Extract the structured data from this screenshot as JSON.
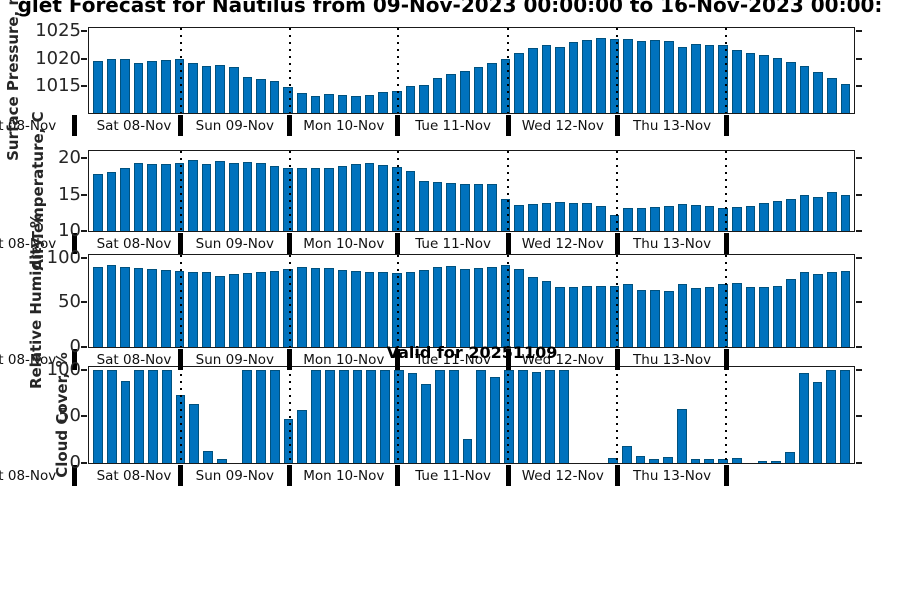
{
  "title": "glet Forecast for Nautilus from 09-Nov-2023 00:00:00 to 16-Nov-2023 00:00:",
  "watermark": "Valid for 20251109",
  "colors": {
    "bar_face": "#0072BD",
    "bar_edge": "#00517E",
    "axis": "#1a1a1a",
    "text": "#262626"
  },
  "x_axis": {
    "day_labels": [
      "Sat 08-Nov",
      "Sun 09-Nov",
      "Mon 10-Nov",
      "Tue 11-Nov",
      "Wed 12-Nov",
      "Thu 13-Nov",
      ""
    ],
    "clipped_left_label": "at 08-Nov",
    "day_boundaries_pct": [
      12.0,
      26.3,
      40.4,
      54.8,
      69.0,
      83.3
    ]
  },
  "chart_data": [
    {
      "type": "bar",
      "ylabel": "Surface Pressure, mb",
      "ylim": [
        1010,
        1025.6
      ],
      "yticks": [
        1015,
        1020,
        1025
      ],
      "grid": "vertical dotted lines at day boundaries",
      "values": [
        1019.5,
        1020,
        1020,
        1019.2,
        1019.5,
        1019.7,
        1020,
        1019.2,
        1018.6,
        1018.9,
        1018.4,
        1016.7,
        1016.3,
        1015.9,
        1014.8,
        1013.7,
        1013.2,
        1013.5,
        1013.3,
        1013.2,
        1013.3,
        1013.9,
        1014.1,
        1015,
        1015.2,
        1016.5,
        1017.1,
        1017.7,
        1018.4,
        1019.1,
        1019.9,
        1021,
        1021.9,
        1022.4,
        1022.2,
        1023,
        1023.4,
        1023.8,
        1023.5,
        1023.6,
        1023.2,
        1023.4,
        1023.3,
        1022.2,
        1022.6,
        1022.4,
        1022.4,
        1021.6,
        1021.1,
        1020.7,
        1020.1,
        1019.3,
        1018.6,
        1017.6,
        1016.4,
        1015.3
      ]
    },
    {
      "type": "bar",
      "ylabel": "Air Temperature, C",
      "ylim": [
        10,
        21
      ],
      "yticks": [
        10,
        15,
        20
      ],
      "grid": "vertical dotted lines at day boundaries",
      "values": [
        17.8,
        18.1,
        18.6,
        19.3,
        19.2,
        19.2,
        19.4,
        19.7,
        19.2,
        19.6,
        19.4,
        19.5,
        19.3,
        19.0,
        18.7,
        18.6,
        18.6,
        18.7,
        18.9,
        19.2,
        19.4,
        19.1,
        18.8,
        18.3,
        16.9,
        16.7,
        16.6,
        16.5,
        16.4,
        16.4,
        14.4,
        13.6,
        13.7,
        13.8,
        14.0,
        13.9,
        13.8,
        13.5,
        12.2,
        13.2,
        13.2,
        13.3,
        13.5,
        13.7,
        13.6,
        13.4,
        13.1,
        13.3,
        13.5,
        13.8,
        14.1,
        14.4,
        15.0,
        14.7,
        15.3,
        15.0
      ]
    },
    {
      "type": "bar",
      "ylabel": "Relative Humidity, %",
      "ylim": [
        0,
        103
      ],
      "yticks": [
        0,
        50,
        100
      ],
      "grid": "vertical dotted lines at day boundaries",
      "values": [
        90,
        91.5,
        90,
        88,
        87.5,
        86.5,
        85,
        83.5,
        84,
        79.5,
        82,
        83,
        84,
        85.5,
        87.5,
        89.5,
        88.5,
        88,
        86.5,
        85.5,
        84,
        83.5,
        82.5,
        83.5,
        86,
        89.5,
        91,
        87,
        88.5,
        90,
        92,
        87.5,
        78,
        73.5,
        67.5,
        67.5,
        68,
        68,
        68,
        71,
        64,
        64,
        62.5,
        71,
        66,
        67.5,
        70,
        72,
        67,
        67,
        68,
        76,
        84,
        81.5,
        84,
        85
      ]
    },
    {
      "type": "bar",
      "ylabel": "Cloud Cover, %",
      "ylim": [
        0,
        103
      ],
      "yticks": [
        0,
        50,
        100
      ],
      "grid": "vertical dotted lines at day boundaries",
      "values": [
        100,
        100,
        88,
        100,
        100,
        100,
        73,
        63,
        13,
        4,
        0,
        100,
        100,
        100,
        47,
        57,
        100,
        100,
        100,
        100,
        100,
        100,
        100,
        97,
        85,
        100,
        100,
        26,
        100,
        92,
        100,
        100,
        98,
        100,
        100,
        0,
        0,
        0,
        5,
        18,
        8,
        4,
        6,
        58,
        4,
        4,
        4,
        5,
        0,
        2,
        2,
        12,
        97,
        87,
        100,
        100
      ]
    }
  ]
}
